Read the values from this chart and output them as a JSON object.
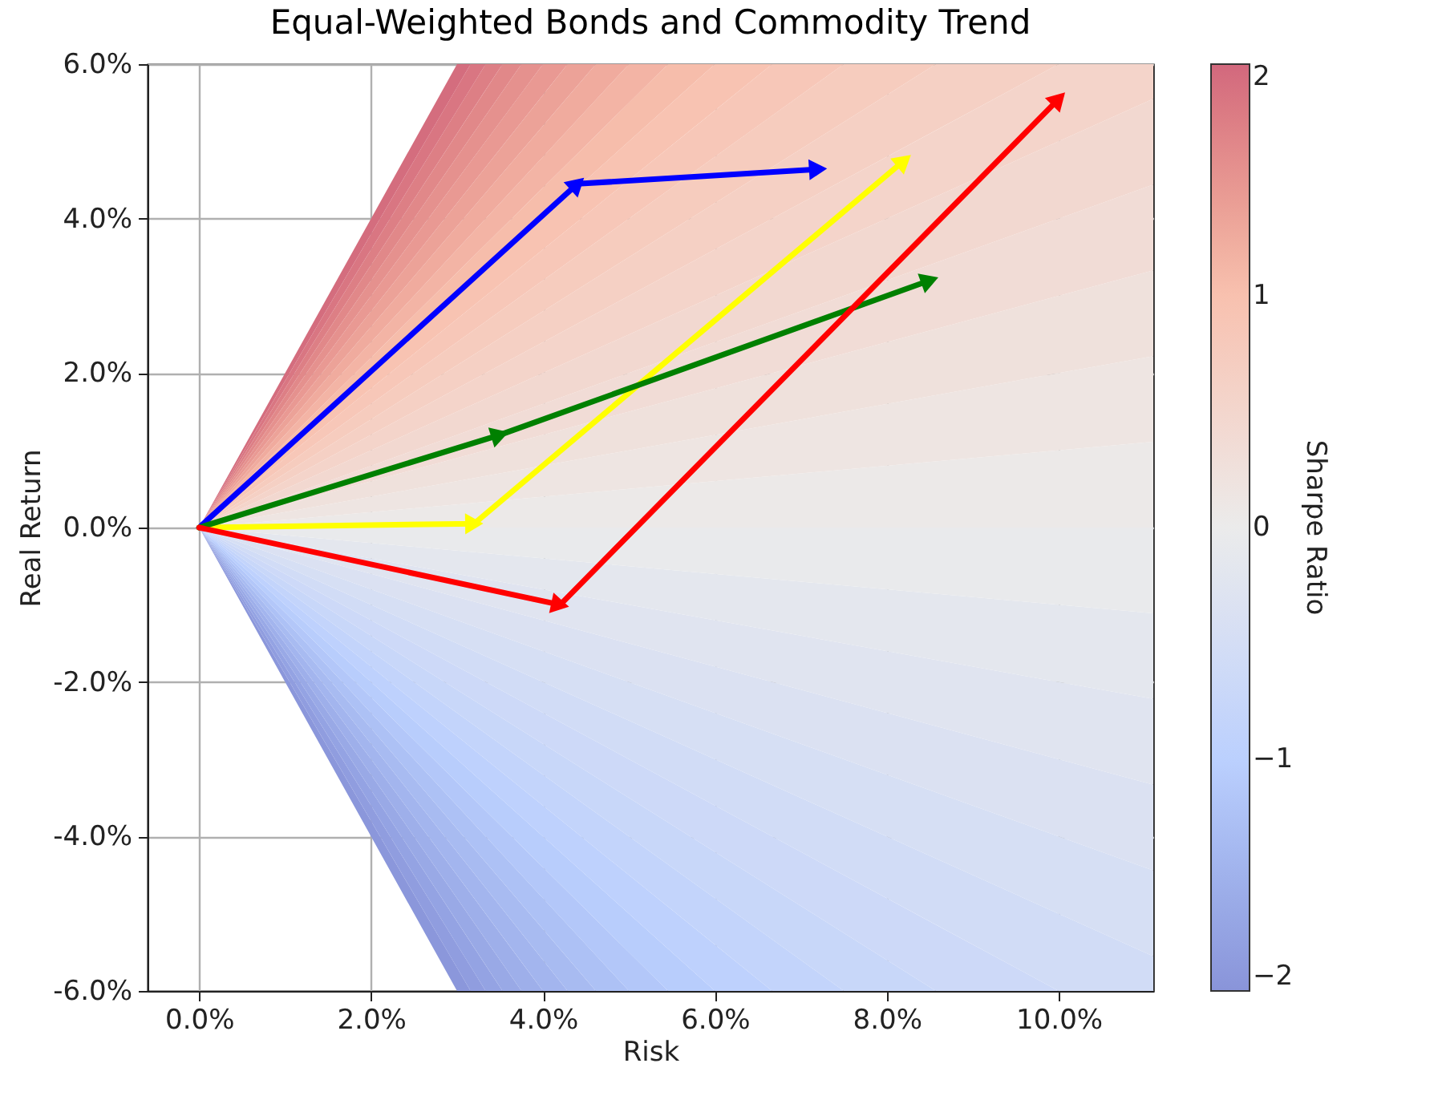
{
  "chart_data": {
    "type": "line",
    "title": "Equal-Weighted Bonds and Commodity Trend",
    "xlabel": "Risk",
    "ylabel": "Real Return",
    "clabel": "Sharpe Ratio",
    "xlim": [
      -0.6,
      11.1
    ],
    "ylim": [
      -6,
      6
    ],
    "xticks": [
      {
        "value": 0,
        "label": "0.0%"
      },
      {
        "value": 2,
        "label": "2.0%"
      },
      {
        "value": 4,
        "label": "4.0%"
      },
      {
        "value": 6,
        "label": "6.0%"
      },
      {
        "value": 8,
        "label": "8.0%"
      },
      {
        "value": 10,
        "label": "10.0%"
      }
    ],
    "yticks": [
      {
        "value": -6,
        "label": "-6.0%"
      },
      {
        "value": -4,
        "label": "-4.0%"
      },
      {
        "value": -2,
        "label": "-2.0%"
      },
      {
        "value": 0,
        "label": "0.0%"
      },
      {
        "value": 2,
        "label": "2.0%"
      },
      {
        "value": 4,
        "label": "4.0%"
      },
      {
        "value": 6,
        "label": "6.0%"
      }
    ],
    "clim": [
      -2,
      2
    ],
    "cticks": [
      {
        "value": -2,
        "label": "−2"
      },
      {
        "value": -1,
        "label": "−1"
      },
      {
        "value": 0,
        "label": "0"
      },
      {
        "value": 1,
        "label": "1"
      },
      {
        "value": 2,
        "label": "2"
      }
    ],
    "grid": true,
    "marker": "triangle",
    "series": [
      {
        "color": "#0000ff",
        "x": [
          0,
          4.4,
          7.2
        ],
        "values": [
          0,
          4.45,
          4.64
        ]
      },
      {
        "color": "#ffff00",
        "x": [
          0,
          3.2,
          8.2
        ],
        "values": [
          0,
          0.05,
          4.75
        ]
      },
      {
        "color": "#008000",
        "x": [
          0,
          3.5,
          8.5
        ],
        "values": [
          0,
          1.2,
          3.2
        ]
      },
      {
        "color": "#ff0000",
        "x": [
          0,
          4.2,
          10.0
        ],
        "values": [
          0,
          -1.0,
          5.55
        ]
      }
    ]
  }
}
